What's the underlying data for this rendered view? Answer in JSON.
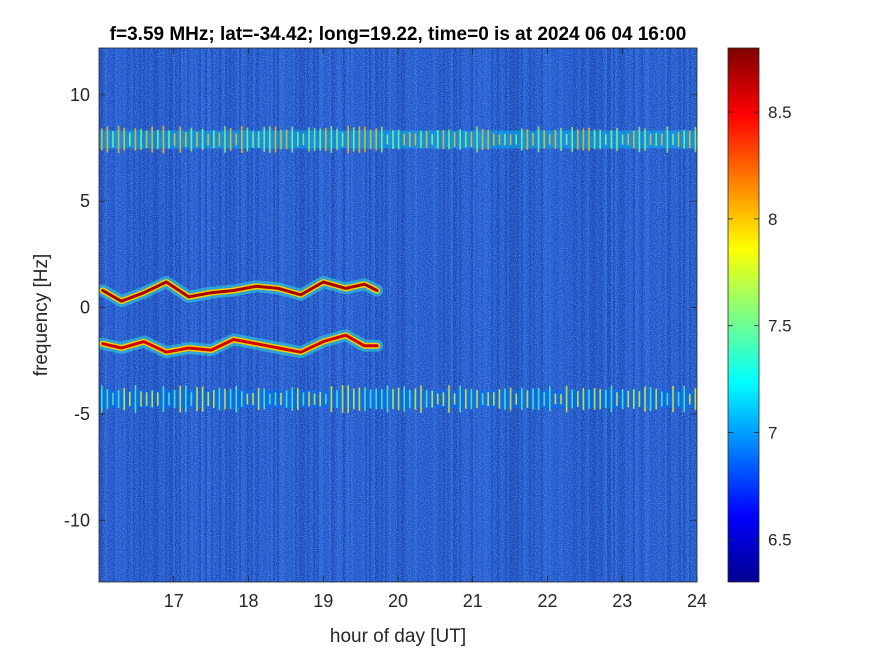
{
  "chart_data": {
    "type": "heatmap",
    "title": "f=3.59 MHz;  lat=-34.42; long=19.22, time=0 is at 2024 06 04 16:00",
    "xlabel": "hour of day [UT]",
    "ylabel": "frequency [Hz]",
    "xlim": [
      16.0,
      24.0
    ],
    "ylim": [
      -12.9,
      12.2
    ],
    "xticks": [
      17,
      18,
      19,
      20,
      21,
      22,
      23,
      24
    ],
    "yticks": [
      -10,
      -5,
      0,
      5,
      10
    ],
    "xtick_labels": [
      "17",
      "18",
      "19",
      "20",
      "21",
      "22",
      "23",
      "24"
    ],
    "ytick_labels": [
      "-10",
      "-5",
      "0",
      "5",
      "10"
    ],
    "colorbar": {
      "colormap": "jet",
      "clim": [
        6.3,
        8.8
      ],
      "ticks": [
        6.5,
        7,
        7.5,
        8,
        8.5
      ],
      "tick_labels": [
        "6.5",
        "7",
        "7.5",
        "8",
        "8.5"
      ]
    },
    "background_level": 6.8,
    "bands": [
      {
        "freq_hz": 7.9,
        "x_start": 16.0,
        "x_end": 24.0,
        "level": 7.6
      },
      {
        "freq_hz": -4.3,
        "x_start": 16.0,
        "x_end": 24.0,
        "level": 7.4
      }
    ],
    "traces": [
      {
        "x": [
          16.05,
          16.3,
          16.6,
          16.9,
          17.2,
          17.5,
          17.8,
          18.1,
          18.4,
          18.7,
          19.0,
          19.3,
          19.55,
          19.72
        ],
        "y": [
          0.8,
          0.3,
          0.7,
          1.2,
          0.5,
          0.7,
          0.8,
          1.0,
          0.9,
          0.6,
          1.2,
          0.9,
          1.1,
          0.8
        ],
        "level": 8.7
      },
      {
        "x": [
          16.05,
          16.3,
          16.6,
          16.9,
          17.2,
          17.5,
          17.8,
          18.1,
          18.4,
          18.7,
          19.0,
          19.3,
          19.55,
          19.72
        ],
        "y": [
          -1.7,
          -1.9,
          -1.6,
          -2.1,
          -1.9,
          -2.0,
          -1.5,
          -1.7,
          -1.9,
          -2.1,
          -1.6,
          -1.3,
          -1.8,
          -1.8
        ],
        "level": 8.6
      }
    ],
    "grid": "off",
    "legend": "none"
  }
}
